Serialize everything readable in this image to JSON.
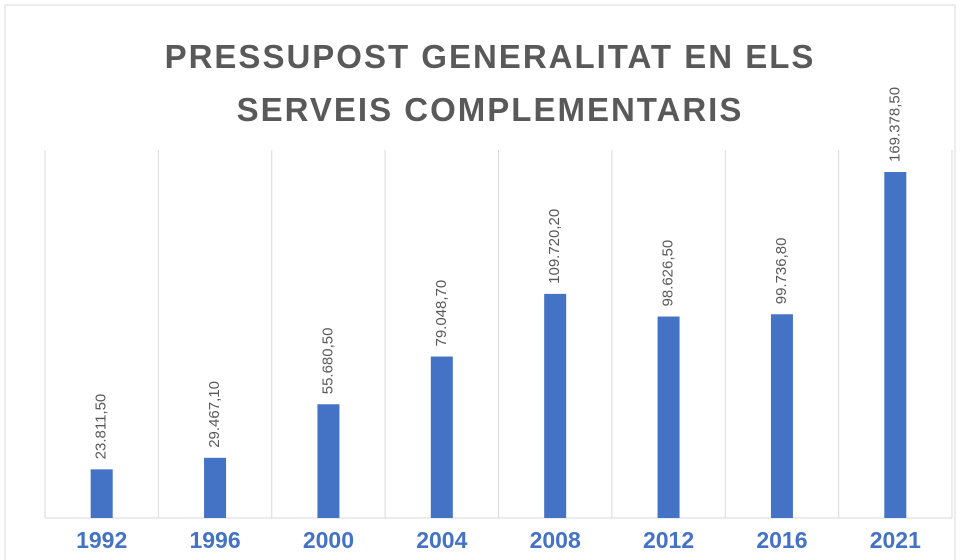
{
  "chart_data": {
    "type": "bar",
    "title": "PRESSUPOST GENERALITAT EN ELS SERVEIS COMPLEMENTARIS",
    "categories": [
      "1992",
      "1996",
      "2000",
      "2004",
      "2008",
      "2012",
      "2016",
      "2021"
    ],
    "values": [
      23811.5,
      29467.1,
      55680.5,
      79048.7,
      109720.2,
      98626.5,
      99736.8,
      169378.5
    ],
    "value_labels": [
      "23.811,50",
      "29.467,10",
      "55.680,50",
      "79.048,70",
      "109.720,20",
      "98.626,50",
      "99.736,80",
      "169.378,50"
    ],
    "color": "#4472c4"
  }
}
